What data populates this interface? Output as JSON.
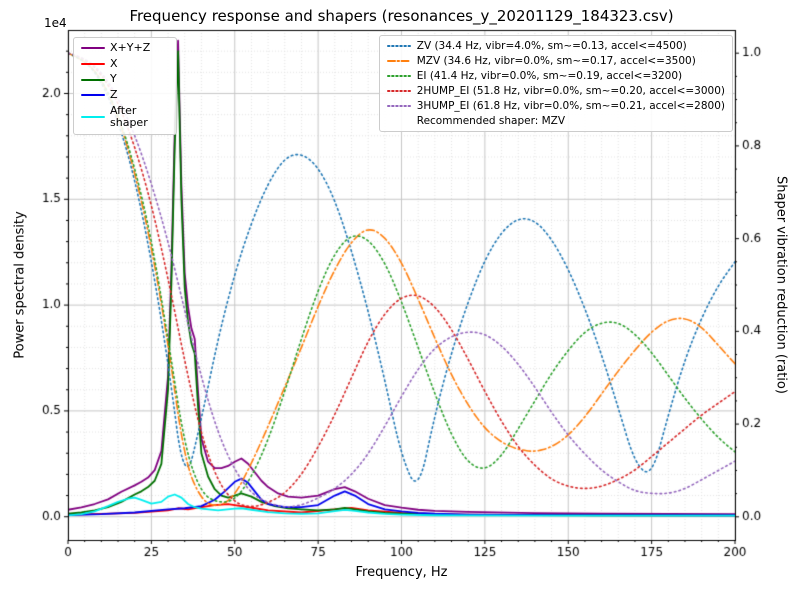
{
  "chart_data": {
    "type": "line",
    "title": "Frequency response and shapers (resonances_y_20201129_184323.csv)",
    "xlabel": "Frequency, Hz",
    "ylabel_left": "Power spectral density",
    "ylabel_right": "Shaper vibration reduction (ratio)",
    "y_offset_text": "1e4",
    "xlim": [
      0,
      200
    ],
    "ylim_left": [
      -1100,
      23000
    ],
    "ylim_right": [
      -0.05,
      1.05
    ],
    "x_ticks": [
      0,
      25,
      50,
      75,
      100,
      125,
      150,
      175,
      200
    ],
    "x_tick_labels": [
      "0",
      "25",
      "50",
      "75",
      "100",
      "125",
      "150",
      "175",
      "200"
    ],
    "y_ticks_left": [
      0,
      5000,
      10000,
      15000,
      20000
    ],
    "y_tick_labels_left": [
      "0.0",
      "0.5",
      "1.0",
      "1.5",
      "2.0"
    ],
    "y_ticks_right": [
      0,
      0.2,
      0.4,
      0.6,
      0.8,
      1.0
    ],
    "y_tick_labels_right": [
      "0.0",
      "0.2",
      "0.4",
      "0.6",
      "0.8",
      "1.0"
    ],
    "grid": true,
    "legend_psd_loc": "upper left",
    "legend_shaper_loc": "upper right",
    "recommended_label": "Recommended shaper: MZV",
    "recommended_shaper": "MZV",
    "psd_series": [
      {
        "name": "X+Y+Z",
        "color": "#800080",
        "linestyle": "solid",
        "x": [
          0,
          4,
          8,
          12,
          16,
          20,
          22,
          24,
          26,
          28,
          30,
          31,
          32,
          33,
          34,
          35,
          36,
          37,
          38,
          39,
          40,
          42,
          44,
          46,
          48,
          50,
          52,
          54,
          56,
          58,
          60,
          63,
          66,
          70,
          75,
          80,
          83,
          86,
          90,
          95,
          100,
          105,
          110,
          120,
          140,
          160,
          180,
          200
        ],
        "y": [
          330,
          440,
          600,
          820,
          1180,
          1480,
          1650,
          1850,
          2200,
          3100,
          6650,
          11700,
          18200,
          22500,
          15700,
          11500,
          9900,
          8900,
          8400,
          5900,
          3700,
          2600,
          2300,
          2300,
          2400,
          2600,
          2750,
          2500,
          2100,
          1700,
          1400,
          1100,
          950,
          900,
          1000,
          1300,
          1400,
          1200,
          850,
          550,
          430,
          330,
          280,
          230,
          170,
          140,
          130,
          120
        ]
      },
      {
        "name": "X",
        "color": "#ff0000",
        "linestyle": "solid",
        "x": [
          0,
          10,
          20,
          30,
          33,
          36,
          40,
          44,
          48,
          52,
          56,
          60,
          70,
          80,
          85,
          90,
          100,
          110,
          120,
          150,
          200
        ],
        "y": [
          100,
          130,
          180,
          300,
          400,
          350,
          450,
          550,
          600,
          500,
          400,
          300,
          200,
          350,
          420,
          300,
          180,
          120,
          100,
          80,
          70
        ]
      },
      {
        "name": "Y",
        "color": "#007000",
        "linestyle": "solid",
        "x": [
          0,
          4,
          8,
          12,
          16,
          20,
          22,
          24,
          26,
          28,
          30,
          31,
          32,
          33,
          34,
          35,
          36,
          37,
          38,
          39,
          40,
          42,
          44,
          46,
          48,
          50,
          52,
          55,
          58,
          62,
          66,
          70,
          75,
          80,
          83,
          86,
          90,
          95,
          100,
          110,
          120,
          140,
          160,
          180,
          200
        ],
        "y": [
          150,
          200,
          300,
          450,
          700,
          1050,
          1200,
          1400,
          1700,
          2500,
          6000,
          11000,
          17500,
          22000,
          15000,
          10800,
          9200,
          8200,
          7700,
          5200,
          3000,
          1900,
          1300,
          1000,
          900,
          1000,
          1100,
          950,
          700,
          500,
          400,
          350,
          300,
          350,
          420,
          350,
          250,
          180,
          150,
          100,
          90,
          80,
          70,
          60,
          60
        ]
      },
      {
        "name": "Z",
        "color": "#0000ee",
        "linestyle": "solid",
        "x": [
          0,
          10,
          20,
          30,
          35,
          40,
          44,
          47,
          50,
          52,
          54,
          56,
          58,
          60,
          65,
          70,
          75,
          80,
          83,
          86,
          90,
          95,
          100,
          105,
          110,
          120,
          150,
          200
        ],
        "y": [
          80,
          120,
          200,
          350,
          400,
          500,
          800,
          1200,
          1650,
          1800,
          1600,
          1200,
          800,
          600,
          450,
          450,
          550,
          1000,
          1200,
          1000,
          600,
          350,
          250,
          180,
          140,
          100,
          80,
          70
        ]
      },
      {
        "name": "After shaper",
        "color": "#00eeee",
        "linestyle": "solid",
        "x": [
          0,
          4,
          8,
          12,
          15,
          18,
          20,
          22,
          25,
          28,
          30,
          32,
          34,
          36,
          38,
          40,
          45,
          50,
          52,
          55,
          60,
          65,
          70,
          75,
          80,
          83,
          86,
          90,
          95,
          100,
          110,
          120,
          150,
          200
        ],
        "y": [
          60,
          120,
          250,
          500,
          700,
          850,
          900,
          800,
          620,
          700,
          950,
          1050,
          900,
          600,
          450,
          380,
          300,
          380,
          400,
          330,
          220,
          160,
          140,
          160,
          260,
          320,
          280,
          200,
          130,
          100,
          70,
          60,
          50,
          50
        ]
      }
    ],
    "shaper_freqs": [
      0,
      5,
      10,
      15,
      20,
      25,
      30,
      35,
      40,
      45,
      50,
      55,
      60,
      65,
      70,
      75,
      80,
      85,
      90,
      95,
      100,
      105,
      110,
      115,
      120,
      125,
      130,
      135,
      140,
      145,
      150,
      155,
      160,
      165,
      170,
      175,
      180,
      185,
      190,
      195,
      200
    ],
    "shaper_series": [
      {
        "name": "ZV",
        "label": "ZV (34.4 Hz, vibr=4.0%, sm~=0.13, accel<=4500)",
        "color": "#1f77b4",
        "linestyle": "dotted",
        "ratio": [
          1.0,
          0.985,
          0.94,
          0.855,
          0.73,
          0.555,
          0.335,
          0.06,
          0.21,
          0.385,
          0.525,
          0.635,
          0.72,
          0.775,
          0.785,
          0.755,
          0.685,
          0.575,
          0.445,
          0.295,
          0.13,
          0.05,
          0.22,
          0.355,
          0.465,
          0.555,
          0.615,
          0.645,
          0.64,
          0.6,
          0.535,
          0.45,
          0.35,
          0.235,
          0.115,
          0.085,
          0.22,
          0.34,
          0.43,
          0.5,
          0.55
        ]
      },
      {
        "name": "MZV",
        "label": "MZV (34.6 Hz, vibr=0.0%, sm~=0.17, accel<=3500)",
        "color": "#ff7f0e",
        "linestyle": "dashdot",
        "ratio": [
          1.0,
          0.985,
          0.945,
          0.865,
          0.745,
          0.585,
          0.375,
          0.12,
          0.035,
          0.02,
          0.045,
          0.115,
          0.195,
          0.28,
          0.365,
          0.455,
          0.535,
          0.595,
          0.625,
          0.605,
          0.55,
          0.47,
          0.385,
          0.305,
          0.24,
          0.19,
          0.16,
          0.145,
          0.14,
          0.15,
          0.175,
          0.215,
          0.265,
          0.315,
          0.36,
          0.4,
          0.425,
          0.43,
          0.41,
          0.37,
          0.33
        ]
      },
      {
        "name": "EI",
        "label": "EI (41.4 Hz, vibr=0.0%, sm~=0.19, accel<=3200)",
        "color": "#2ca02c",
        "linestyle": "dotted",
        "ratio": [
          1.0,
          0.985,
          0.945,
          0.87,
          0.755,
          0.6,
          0.385,
          0.15,
          0.05,
          0.03,
          0.035,
          0.085,
          0.165,
          0.27,
          0.385,
          0.49,
          0.57,
          0.61,
          0.6,
          0.55,
          0.465,
          0.365,
          0.265,
          0.175,
          0.115,
          0.1,
          0.13,
          0.19,
          0.25,
          0.31,
          0.36,
          0.4,
          0.42,
          0.42,
          0.395,
          0.355,
          0.305,
          0.255,
          0.21,
          0.17,
          0.14
        ]
      },
      {
        "name": "2HUMP_EI",
        "label": "2HUMP_EI (51.8 Hz, vibr=0.0%, sm~=0.20, accel<=3000)",
        "color": "#d62728",
        "linestyle": "dotted",
        "ratio": [
          1.0,
          0.99,
          0.955,
          0.895,
          0.8,
          0.675,
          0.515,
          0.335,
          0.175,
          0.075,
          0.03,
          0.02,
          0.03,
          0.05,
          0.09,
          0.15,
          0.22,
          0.3,
          0.38,
          0.44,
          0.475,
          0.48,
          0.455,
          0.405,
          0.34,
          0.27,
          0.205,
          0.15,
          0.11,
          0.08,
          0.065,
          0.06,
          0.065,
          0.08,
          0.1,
          0.13,
          0.16,
          0.19,
          0.22,
          0.245,
          0.27
        ]
      },
      {
        "name": "3HUMP_EI",
        "label": "3HUMP_EI (61.8 Hz, vibr=0.0%, sm~=0.21, accel<=2800)",
        "color": "#9467bd",
        "linestyle": "dotted",
        "ratio": [
          1.0,
          0.99,
          0.96,
          0.905,
          0.825,
          0.72,
          0.595,
          0.445,
          0.3,
          0.18,
          0.1,
          0.05,
          0.03,
          0.02,
          0.025,
          0.04,
          0.06,
          0.09,
          0.135,
          0.195,
          0.26,
          0.32,
          0.365,
          0.39,
          0.4,
          0.395,
          0.37,
          0.33,
          0.28,
          0.225,
          0.175,
          0.135,
          0.1,
          0.075,
          0.055,
          0.05,
          0.05,
          0.06,
          0.08,
          0.1,
          0.12
        ]
      }
    ],
    "colors": {
      "background": "#ffffff",
      "grid_major": "#c6c6c6",
      "grid_minor": "#e2e2e2",
      "spine": "#000000",
      "text": "#000000"
    }
  }
}
